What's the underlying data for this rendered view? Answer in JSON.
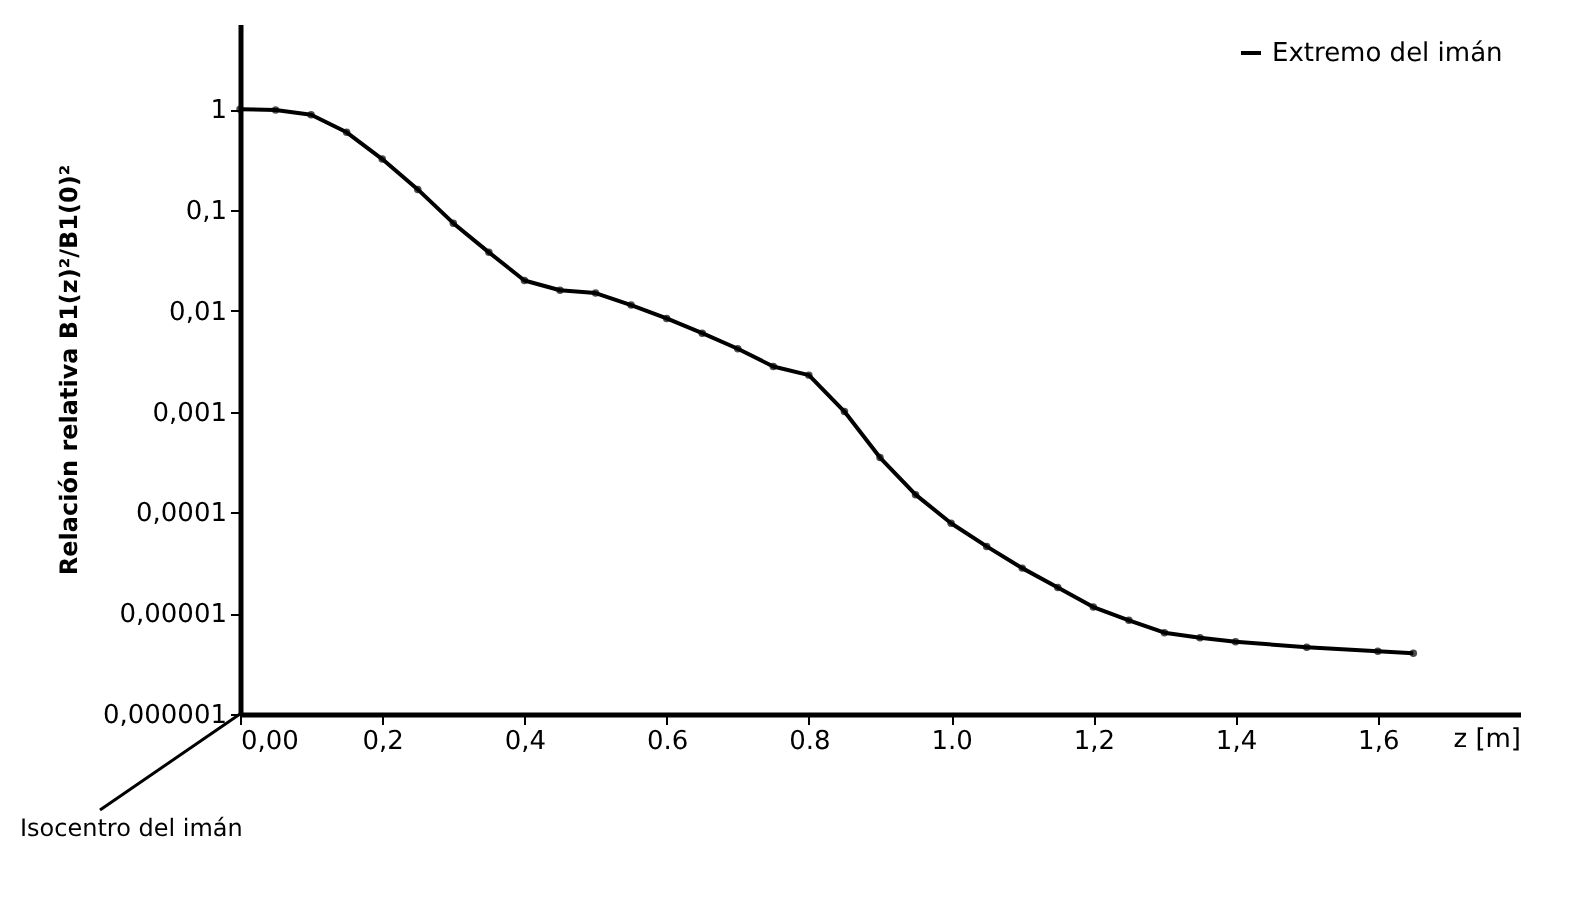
{
  "chart_data": {
    "type": "line",
    "xlabel": "z [m]",
    "ylabel": "Relación relativa B1(z)²/B1(0)²",
    "annotations": [
      "Isocentro del imán"
    ],
    "x": [
      0,
      0.05,
      0.1,
      0.15,
      0.2,
      0.25,
      0.3,
      0.35,
      0.4,
      0.45,
      0.5,
      0.55,
      0.6,
      0.65,
      0.7,
      0.75,
      0.8,
      0.85,
      0.9,
      0.95,
      1.0,
      1.05,
      1.1,
      1.15,
      1.2,
      1.25,
      1.3,
      1.35,
      1.4,
      1.5,
      1.6,
      1.65
    ],
    "series": [
      {
        "name": "Extremo del imán",
        "color": "#000000",
        "values": [
          1,
          0.98,
          0.88,
          0.59,
          0.32,
          0.16,
          0.074,
          0.038,
          0.02,
          0.016,
          0.015,
          0.0114,
          0.0084,
          0.006,
          0.0042,
          0.0028,
          0.0023,
          0.001,
          0.00035,
          0.00015,
          7.8e-05,
          4.6e-05,
          2.8e-05,
          1.8e-05,
          1.15e-05,
          8.5e-06,
          6.4e-06,
          5.7e-06,
          5.2e-06,
          4.6e-06,
          4.2e-06,
          4e-06
        ]
      }
    ],
    "xlim": [
      0,
      1.8
    ],
    "xticks": [
      {
        "value": 0,
        "label": "0,00"
      },
      {
        "value": 0.2,
        "label": "0,2"
      },
      {
        "value": 0.4,
        "label": "0,4"
      },
      {
        "value": 0.6,
        "label": "0.6"
      },
      {
        "value": 0.8,
        "label": "0.8"
      },
      {
        "value": 1.0,
        "label": "1.0"
      },
      {
        "value": 1.2,
        "label": "1,2"
      },
      {
        "value": 1.4,
        "label": "1,4"
      },
      {
        "value": 1.6,
        "label": "1,6"
      }
    ],
    "ylim": [
      1e-06,
      7
    ],
    "yticks": [
      {
        "value": 1e-06,
        "label": "0,000001"
      },
      {
        "value": 1e-05,
        "label": "0,00001"
      },
      {
        "value": 0.0001,
        "label": "0,0001"
      },
      {
        "value": 0.001,
        "label": "0,001"
      },
      {
        "value": 0.01,
        "label": "0,01"
      },
      {
        "value": 0.1,
        "label": "0,1"
      },
      1
    ],
    "log": "y",
    "legend": "top right",
    "marker": "circle"
  }
}
